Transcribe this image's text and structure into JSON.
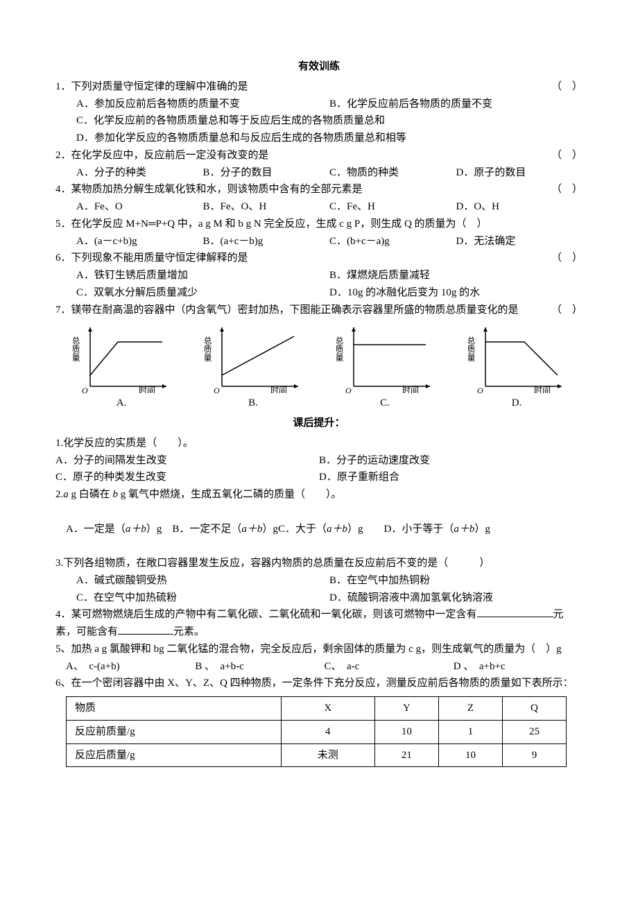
{
  "sectionA": {
    "title": "有效训练",
    "q1": {
      "stem": "1．下列对质量守恒定律的理解中准确的是",
      "paren": "（　）",
      "a": "A．参加反应前后各物质的质量不变",
      "b": "B．化学反应前后各物质的质量不变",
      "c": "C．化学反应前的各物质质量总和等于反应后生成的各物质质量总和",
      "d": "D．参加化学反应的各物质质量总和与反应后生成的各物质质量总和相等"
    },
    "q2": {
      "stem": "2．在化学反应中，反应前后一定没有改变的是",
      "paren": "（　）",
      "a": "A．分子的种类",
      "b": "B．分子的数目",
      "c": "C．物质的种类",
      "d": "D．原子的数目"
    },
    "q4": {
      "stem": "4．某物质加热分解生成氧化铁和水，则该物质中含有的全部元素是",
      "paren": "（　）",
      "a": "A．Fe、O",
      "b": "B．Fe、O、H",
      "c": "C．Fe、H",
      "d": "D．O、H"
    },
    "q5": {
      "stem": "5．在化学反应 M+N═P+Q 中，a g M 和 b g N 完全反应，生成 c g P，则生成 Q 的质量为（　）",
      "a": "A．(a－c+b)g",
      "b": "B．(a+c－b)g",
      "c": "C．(b+c－a)g",
      "d": "D．无法确定"
    },
    "q6": {
      "stem": "6．下列现象不能用质量守恒定律解释的是",
      "paren": "（　）",
      "a": "A．铁钉生锈后质量增加",
      "b": "B．煤燃烧后质量减轻",
      "c": "C．双氧水分解后质量减少",
      "d": "D．10g 的冰融化后变为 10g 的水"
    },
    "q7": {
      "stem": "7．镁带在耐高温的容器中（内含氧气）密封加热，下图能正确表示容器里所盛的物质总质量变化的是",
      "paren": "（　）",
      "ylabel": "总质量",
      "xlabel": "时间",
      "axis_color": "#000000",
      "line_color": "#000000",
      "bg_color": "#ffffff",
      "line_width": 1.5,
      "label_fontsize": 12,
      "charts": [
        {
          "label": "A.",
          "points": [
            [
              0,
              20
            ],
            [
              50,
              80
            ],
            [
              130,
              80
            ]
          ]
        },
        {
          "label": "B.",
          "points": [
            [
              0,
              20
            ],
            [
              130,
              90
            ]
          ]
        },
        {
          "label": "C.",
          "points": [
            [
              0,
              75
            ],
            [
              130,
              75
            ]
          ]
        },
        {
          "label": "D.",
          "points": [
            [
              0,
              80
            ],
            [
              70,
              80
            ],
            [
              130,
              20
            ]
          ]
        }
      ]
    }
  },
  "sectionB": {
    "title": "课后提升：",
    "q1": {
      "stem": "1.化学反应的实质是（　　）。",
      "a": "A．分子的间隔发生改变",
      "b": "B．分子的运动速度改变",
      "c": "C．原子的种类发生改变",
      "d": "D．原子重新组合"
    },
    "q2": {
      "stem_pre": "2.",
      "stem_mid": " g 白磷在 ",
      "stem_post": " g 氧气中燃烧，生成五氧化二磷的质量（　　）。",
      "a_pre": "A．一定是（",
      "a_post": "）g",
      "b_pre": "B．一定不足（",
      "b_post": "）g",
      "c_pre": "C．大于（",
      "c_post": "）g",
      "d_pre": "D．小于等于（",
      "d_post": "）g",
      "var_a": "a",
      "var_b": "b",
      "var_ab": "a＋b"
    },
    "q3": {
      "stem": "3.下列各组物质，在敞口容器里发生反应，容器内物质的总质量在反应前后不变的是（　　　）",
      "a": "A．碱式碳酸铜受热",
      "b": "B．在空气中加热铜粉",
      "c": "C．在空气中加热硫粉",
      "d": "D．硫酸铜溶液中滴加氢氧化钠溶液"
    },
    "q4": {
      "stem_pre": "4．某可燃物燃烧后生成的产物中有二氧化碳、二氧化硫和一氧化碳，则该可燃物中一定含有",
      "stem_mid": "元素，可能含有",
      "stem_post": "元素。"
    },
    "q5": {
      "stem": "5、加热 a g 氯酸钾和 bg 二氧化锰的混合物，完全反应后，剩余固体的质量为 c g，则生成氧气的质量为（　）g",
      "a": "A、　c-(a+b)",
      "b": "B 、　a+b-c",
      "c": "C、　a-c",
      "d": "D 、　a+b+c"
    },
    "q6": {
      "stem": "6、在一个密闭容器中由 X、Y、Z、Q 四种物质，一定条件下充分反应，测量反应前后各物质的质量如下表所示：",
      "table": {
        "columns": [
          "物质",
          "X",
          "Y",
          "Z",
          "Q"
        ],
        "rows": [
          [
            "反应前质量/g",
            "4",
            "10",
            "1",
            "25"
          ],
          [
            "反应后质量/g",
            "未测",
            "21",
            "10",
            "9"
          ]
        ]
      }
    }
  }
}
